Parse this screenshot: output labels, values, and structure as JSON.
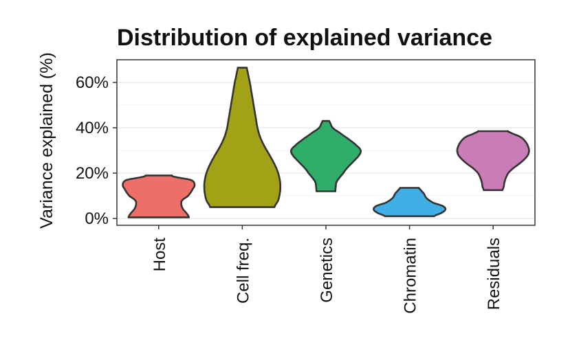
{
  "chart_data": {
    "type": "violin",
    "title": "Distribution of explained variance",
    "xlabel": "",
    "ylabel": "Variance explained (%)",
    "ylim": [
      -3,
      70
    ],
    "yticks": [
      0,
      20,
      40,
      60
    ],
    "ytick_labels": [
      "0%",
      "20%",
      "40%",
      "60%"
    ],
    "grid": true,
    "legend": "none",
    "categories": [
      "Host",
      "Cell freq.",
      "Genetics",
      "Chromatin",
      "Residuals"
    ],
    "series": [
      {
        "category": "Host",
        "color": "#EE6F69",
        "range": [
          0.5,
          19
        ],
        "profile": [
          [
            0.5,
            0.8
          ],
          [
            2,
            0.75
          ],
          [
            4,
            0.65
          ],
          [
            6,
            0.6
          ],
          [
            8,
            0.62
          ],
          [
            10,
            0.78
          ],
          [
            13,
            0.9
          ],
          [
            15,
            0.95
          ],
          [
            17,
            0.85
          ],
          [
            18.5,
            0.4
          ],
          [
            19,
            0.35
          ]
        ]
      },
      {
        "category": "Cell freq.",
        "color": "#A2A216",
        "range": [
          5,
          66.5
        ],
        "profile": [
          [
            5,
            0.85
          ],
          [
            8,
            0.95
          ],
          [
            12,
            1.0
          ],
          [
            16,
            1.0
          ],
          [
            20,
            0.95
          ],
          [
            24,
            0.85
          ],
          [
            28,
            0.72
          ],
          [
            32,
            0.58
          ],
          [
            36,
            0.47
          ],
          [
            40,
            0.4
          ],
          [
            45,
            0.35
          ],
          [
            50,
            0.3
          ],
          [
            55,
            0.25
          ],
          [
            60,
            0.2
          ],
          [
            64,
            0.15
          ],
          [
            66.5,
            0.12
          ]
        ]
      },
      {
        "category": "Genetics",
        "color": "#2FAD69",
        "range": [
          12,
          43
        ],
        "profile": [
          [
            12,
            0.25
          ],
          [
            14,
            0.26
          ],
          [
            16,
            0.28
          ],
          [
            18,
            0.36
          ],
          [
            20,
            0.46
          ],
          [
            22,
            0.55
          ],
          [
            25,
            0.72
          ],
          [
            28,
            0.88
          ],
          [
            30,
            0.92
          ],
          [
            32,
            0.82
          ],
          [
            35,
            0.6
          ],
          [
            38,
            0.35
          ],
          [
            40,
            0.18
          ],
          [
            42,
            0.12
          ],
          [
            43,
            0.09
          ]
        ]
      },
      {
        "category": "Chromatin",
        "color": "#3FAFE6",
        "range": [
          1,
          13.5
        ],
        "profile": [
          [
            1,
            0.65
          ],
          [
            2.5,
            0.85
          ],
          [
            4,
            0.95
          ],
          [
            5.5,
            0.88
          ],
          [
            7,
            0.62
          ],
          [
            9,
            0.45
          ],
          [
            11,
            0.38
          ],
          [
            12.5,
            0.3
          ],
          [
            13.5,
            0.25
          ]
        ]
      },
      {
        "category": "Residuals",
        "color": "#C97CB5",
        "range": [
          12.5,
          38.5
        ],
        "profile": [
          [
            12.5,
            0.25
          ],
          [
            14,
            0.28
          ],
          [
            16,
            0.3
          ],
          [
            18,
            0.34
          ],
          [
            20,
            0.4
          ],
          [
            22,
            0.52
          ],
          [
            24,
            0.68
          ],
          [
            26,
            0.82
          ],
          [
            28,
            0.92
          ],
          [
            30,
            0.95
          ],
          [
            32,
            0.92
          ],
          [
            34,
            0.85
          ],
          [
            36,
            0.72
          ],
          [
            38,
            0.45
          ],
          [
            38.5,
            0.4
          ]
        ]
      }
    ]
  }
}
